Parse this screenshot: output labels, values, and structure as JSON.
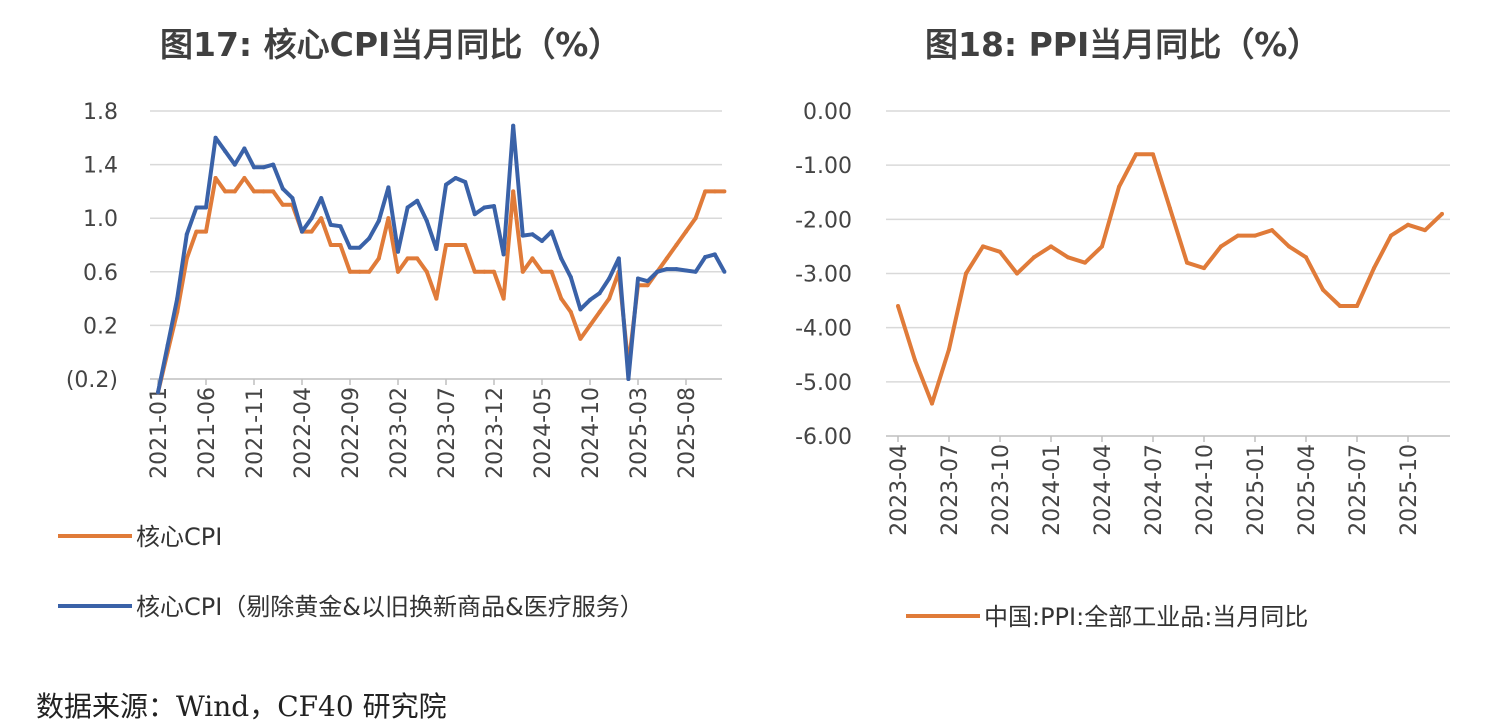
{
  "chart_data": [
    {
      "type": "line",
      "title": "图17: 核心CPI当月同比（%）",
      "ylim": [
        -0.2,
        1.8
      ],
      "yticks": [
        -0.2,
        0.2,
        0.6,
        1.0,
        1.4,
        1.8
      ],
      "ytick_labels": [
        "(0.2)",
        "0.2",
        "0.6",
        "1.0",
        "1.4",
        "1.8"
      ],
      "xtick_labels": [
        "2021-01",
        "2021-06",
        "2021-11",
        "2022-04",
        "2022-09",
        "2023-02",
        "2023-07",
        "2023-12",
        "2024-05",
        "2024-10",
        "2025-03",
        "2025-08"
      ],
      "grid": true,
      "legend_position": "bottom",
      "series": [
        {
          "name": "核心CPI",
          "color": "#E07B39",
          "values": [
            -0.3,
            0.0,
            0.3,
            0.7,
            0.9,
            0.9,
            1.3,
            1.2,
            1.2,
            1.3,
            1.2,
            1.2,
            1.2,
            1.1,
            1.1,
            0.9,
            0.9,
            1.0,
            0.8,
            0.8,
            0.6,
            0.6,
            0.6,
            0.7,
            1.0,
            0.6,
            0.7,
            0.7,
            0.6,
            0.4,
            0.8,
            0.8,
            0.8,
            0.6,
            0.6,
            0.6,
            0.4,
            1.2,
            0.6,
            0.7,
            0.6,
            0.6,
            0.4,
            0.3,
            0.1,
            0.2,
            0.3,
            0.4,
            0.6,
            -0.1,
            0.5,
            0.5,
            0.6,
            0.7,
            0.8,
            0.9,
            1.0,
            1.2,
            1.2,
            1.2
          ]
        },
        {
          "name": "核心CPI（剔除黄金&以旧换新商品&医疗服务）",
          "color": "#3A62A8",
          "values": [
            -0.3,
            0.05,
            0.4,
            0.88,
            1.08,
            1.08,
            1.6,
            1.5,
            1.4,
            1.52,
            1.38,
            1.38,
            1.4,
            1.22,
            1.15,
            0.9,
            1.0,
            1.15,
            0.95,
            0.94,
            0.78,
            0.78,
            0.85,
            0.98,
            1.23,
            0.75,
            1.08,
            1.13,
            0.98,
            0.77,
            1.25,
            1.3,
            1.27,
            1.03,
            1.08,
            1.09,
            0.73,
            1.69,
            0.87,
            0.88,
            0.83,
            0.9,
            0.7,
            0.56,
            0.32,
            0.39,
            0.44,
            0.55,
            0.7,
            -0.2,
            0.55,
            0.53,
            0.6,
            0.62,
            0.62,
            0.61,
            0.6,
            0.71,
            0.73,
            0.6
          ]
        }
      ]
    },
    {
      "type": "line",
      "title": "图18: PPI当月同比（%）",
      "ylim": [
        -6.0,
        0.0
      ],
      "yticks": [
        -6,
        -5,
        -4,
        -3,
        -2,
        -1,
        0
      ],
      "ytick_labels": [
        "-6.00",
        "-5.00",
        "-4.00",
        "-3.00",
        "-2.00",
        "-1.00",
        "0.00"
      ],
      "xtick_labels": [
        "2023-04",
        "2023-07",
        "2023-10",
        "2024-01",
        "2024-04",
        "2024-07",
        "2024-10",
        "2025-01",
        "2025-04",
        "2025-07",
        "2025-10"
      ],
      "grid": true,
      "legend_position": "bottom",
      "series": [
        {
          "name": "中国:PPI:全部工业品:当月同比",
          "color": "#E07B39",
          "values": [
            -3.6,
            -4.6,
            -5.4,
            -4.4,
            -3.0,
            -2.5,
            -2.6,
            -3.0,
            -2.7,
            -2.5,
            -2.7,
            -2.8,
            -2.5,
            -1.4,
            -0.8,
            -0.8,
            -1.8,
            -2.8,
            -2.9,
            -2.5,
            -2.3,
            -2.3,
            -2.2,
            -2.5,
            -2.7,
            -3.3,
            -3.6,
            -3.6,
            -2.9,
            -2.3,
            -2.1,
            -2.2,
            -1.9
          ]
        }
      ]
    }
  ],
  "source_note": "数据来源：Wind，CF40 研究院"
}
